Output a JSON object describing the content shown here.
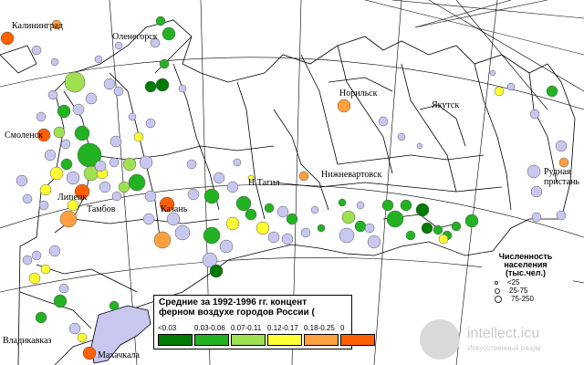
{
  "map": {
    "city_labels": [
      "Калининград",
      "Оленегорск",
      "Норильск",
      "Якутск",
      "Смоленск",
      "Рудная пристань",
      "Нижневартовск",
      "Н.Тагил",
      "Липецк",
      "Тамбов",
      "Казань",
      "Владикавказ",
      "Махачкала"
    ]
  },
  "legend": {
    "title_line1": "Средние за 1992-1996 гг. концент",
    "title_line2": "ферном воздухе городов России (",
    "bins": [
      {
        "label": "<0.03",
        "color": "#007a00"
      },
      {
        "label": "0.03-0.06",
        "color": "#22b222"
      },
      {
        "label": "0.07-0.11",
        "color": "#9fe050"
      },
      {
        "label": "0.12-0.17",
        "color": "#ffff33"
      },
      {
        "label": "0.18-0.25",
        "color": "#ffa040"
      },
      {
        "label": "0",
        "color": "#ff6000"
      }
    ]
  },
  "size_legend": {
    "title_line1": "Численность",
    "title_line2": "населения",
    "title_line3": "(тыс.чел.)",
    "items": [
      "<25",
      "25-75",
      "75-250"
    ]
  },
  "watermark": {
    "site": "intellect.icu",
    "tagline": "Искусственный разум"
  },
  "colors": {
    "low_blue": "#c7c7f0",
    "border": "#000000",
    "graticule": "#000000"
  }
}
